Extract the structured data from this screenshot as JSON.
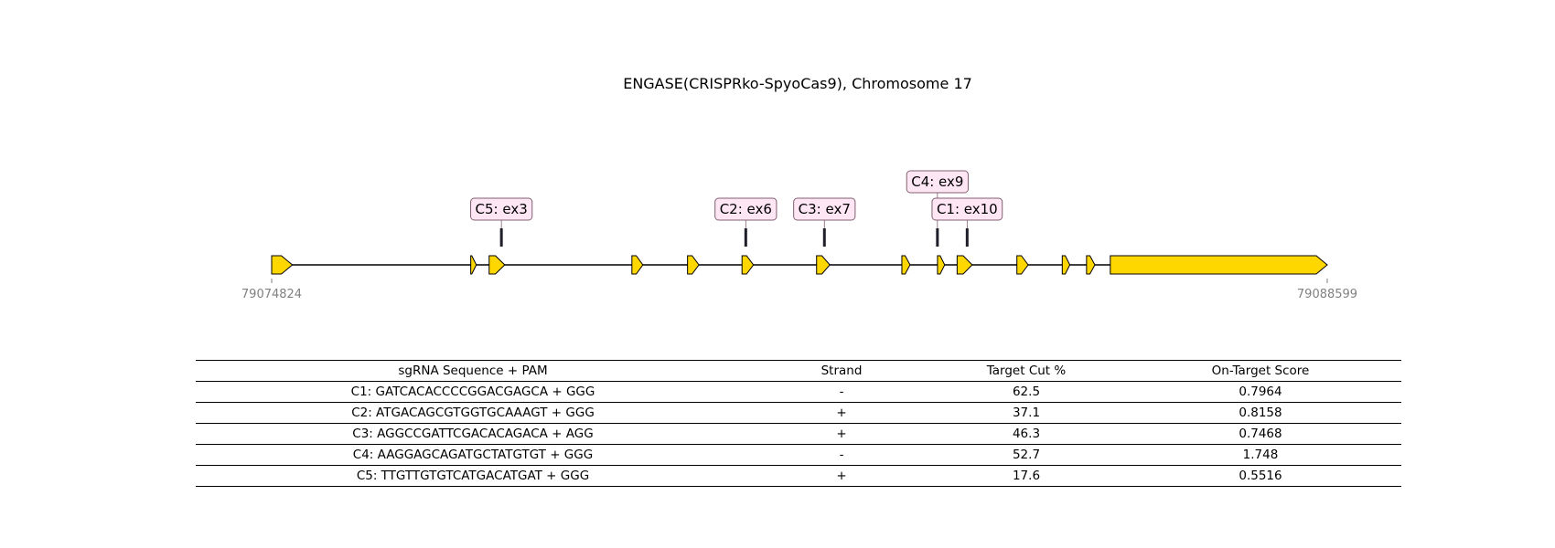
{
  "title": "ENGASE(CRISPRko-SpyoCas9), Chromosome 17",
  "gene": {
    "start": 79074824,
    "end": 79088599,
    "start_label": "79074824",
    "end_label": "79088599",
    "exon_color": "#FFD700",
    "exons": [
      {
        "start": 79074824,
        "end": 79075094
      },
      {
        "start": 79077422,
        "end": 79077495
      },
      {
        "start": 79077662,
        "end": 79077866
      },
      {
        "start": 79079525,
        "end": 79079668
      },
      {
        "start": 79080251,
        "end": 79080400
      },
      {
        "start": 79080962,
        "end": 79081111
      },
      {
        "start": 79081935,
        "end": 79082108
      },
      {
        "start": 79083048,
        "end": 79083155
      },
      {
        "start": 79083513,
        "end": 79083607
      },
      {
        "start": 79083769,
        "end": 79083966
      },
      {
        "start": 79084549,
        "end": 79084696
      },
      {
        "start": 79085141,
        "end": 79085240
      },
      {
        "start": 79085458,
        "end": 79085567
      },
      {
        "start": 79085768,
        "end": 79088599
      }
    ]
  },
  "cut_sites": [
    {
      "id": "C5",
      "label": "C5: ex3",
      "position": 79077822,
      "row": 0
    },
    {
      "id": "C2",
      "label": "C2: ex6",
      "position": 79081011,
      "row": 0
    },
    {
      "id": "C3",
      "label": "C3: ex7",
      "position": 79082037,
      "row": 0
    },
    {
      "id": "C4",
      "label": "C4: ex9",
      "position": 79083512,
      "row": 1
    },
    {
      "id": "C1",
      "label": "C1: ex10",
      "position": 79083900,
      "row": 0
    }
  ],
  "label_colors": {
    "fill": "#FFE6F5",
    "border": "#806070",
    "cut_line": "#1f1f2a"
  },
  "table": {
    "headers": [
      "sgRNA Sequence + PAM",
      "Strand",
      "Target Cut %",
      "On-Target Score"
    ],
    "rows": [
      [
        "C1: GATCACACCCCGGACGAGCA + GGG",
        "-",
        "62.5",
        "0.7964"
      ],
      [
        "C2: ATGACAGCGTGGTGCAAAGT + GGG",
        "+",
        "37.1",
        "0.8158"
      ],
      [
        "C3: AGGCCGATTCGACACAGACA + AGG",
        "+",
        "46.3",
        "0.7468"
      ],
      [
        "C4: AAGGAGCAGATGCTATGTGT + GGG",
        "-",
        "52.7",
        "1.748"
      ],
      [
        "C5: TTGTTGTGTCATGACATGAT + GGG",
        "+",
        "17.6",
        "0.5516"
      ]
    ]
  }
}
